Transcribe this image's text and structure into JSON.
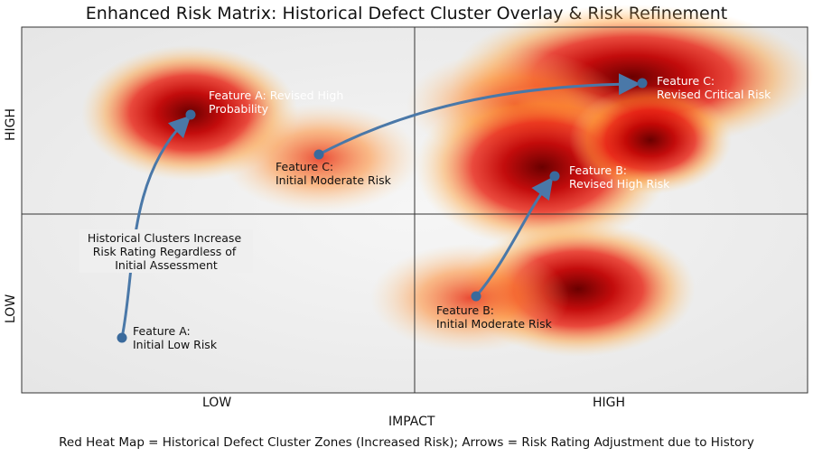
{
  "title": "Enhanced Risk Matrix: Historical Defect Cluster Overlay & Risk Refinement",
  "axes": {
    "y_high": "HIGH",
    "y_low": "LOW",
    "x_low": "LOW",
    "x_high": "HIGH",
    "x_title": "IMPACT"
  },
  "caption": "Red Heat Map = Historical Defect Cluster Zones (Increased Risk); Arrows = Risk Rating Adjustment due to History",
  "annotations": {
    "feature_a_initial": [
      "Feature A:",
      "Initial Low Risk"
    ],
    "feature_a_revised": [
      "Feature A: Revised High",
      "Probability"
    ],
    "feature_b_initial": [
      "Feature B:",
      "Initial Moderate Risk"
    ],
    "feature_b_revised": [
      "Feature B:",
      "Revised High Risk"
    ],
    "feature_c_initial": [
      "Feature C:",
      "Initial Moderate Risk"
    ],
    "feature_c_revised": [
      "Feature C:",
      "Revised Critical Risk"
    ],
    "note": [
      "Historical Clusters Increase",
      "Risk Rating Regardless of",
      "Initial Assessment"
    ]
  },
  "colors": {
    "heat_core": "#7a0000",
    "heat_mid": "#e01010",
    "heat_edge": "#ffb030",
    "arrow": "#4a78a8",
    "background": "#efefef"
  }
}
